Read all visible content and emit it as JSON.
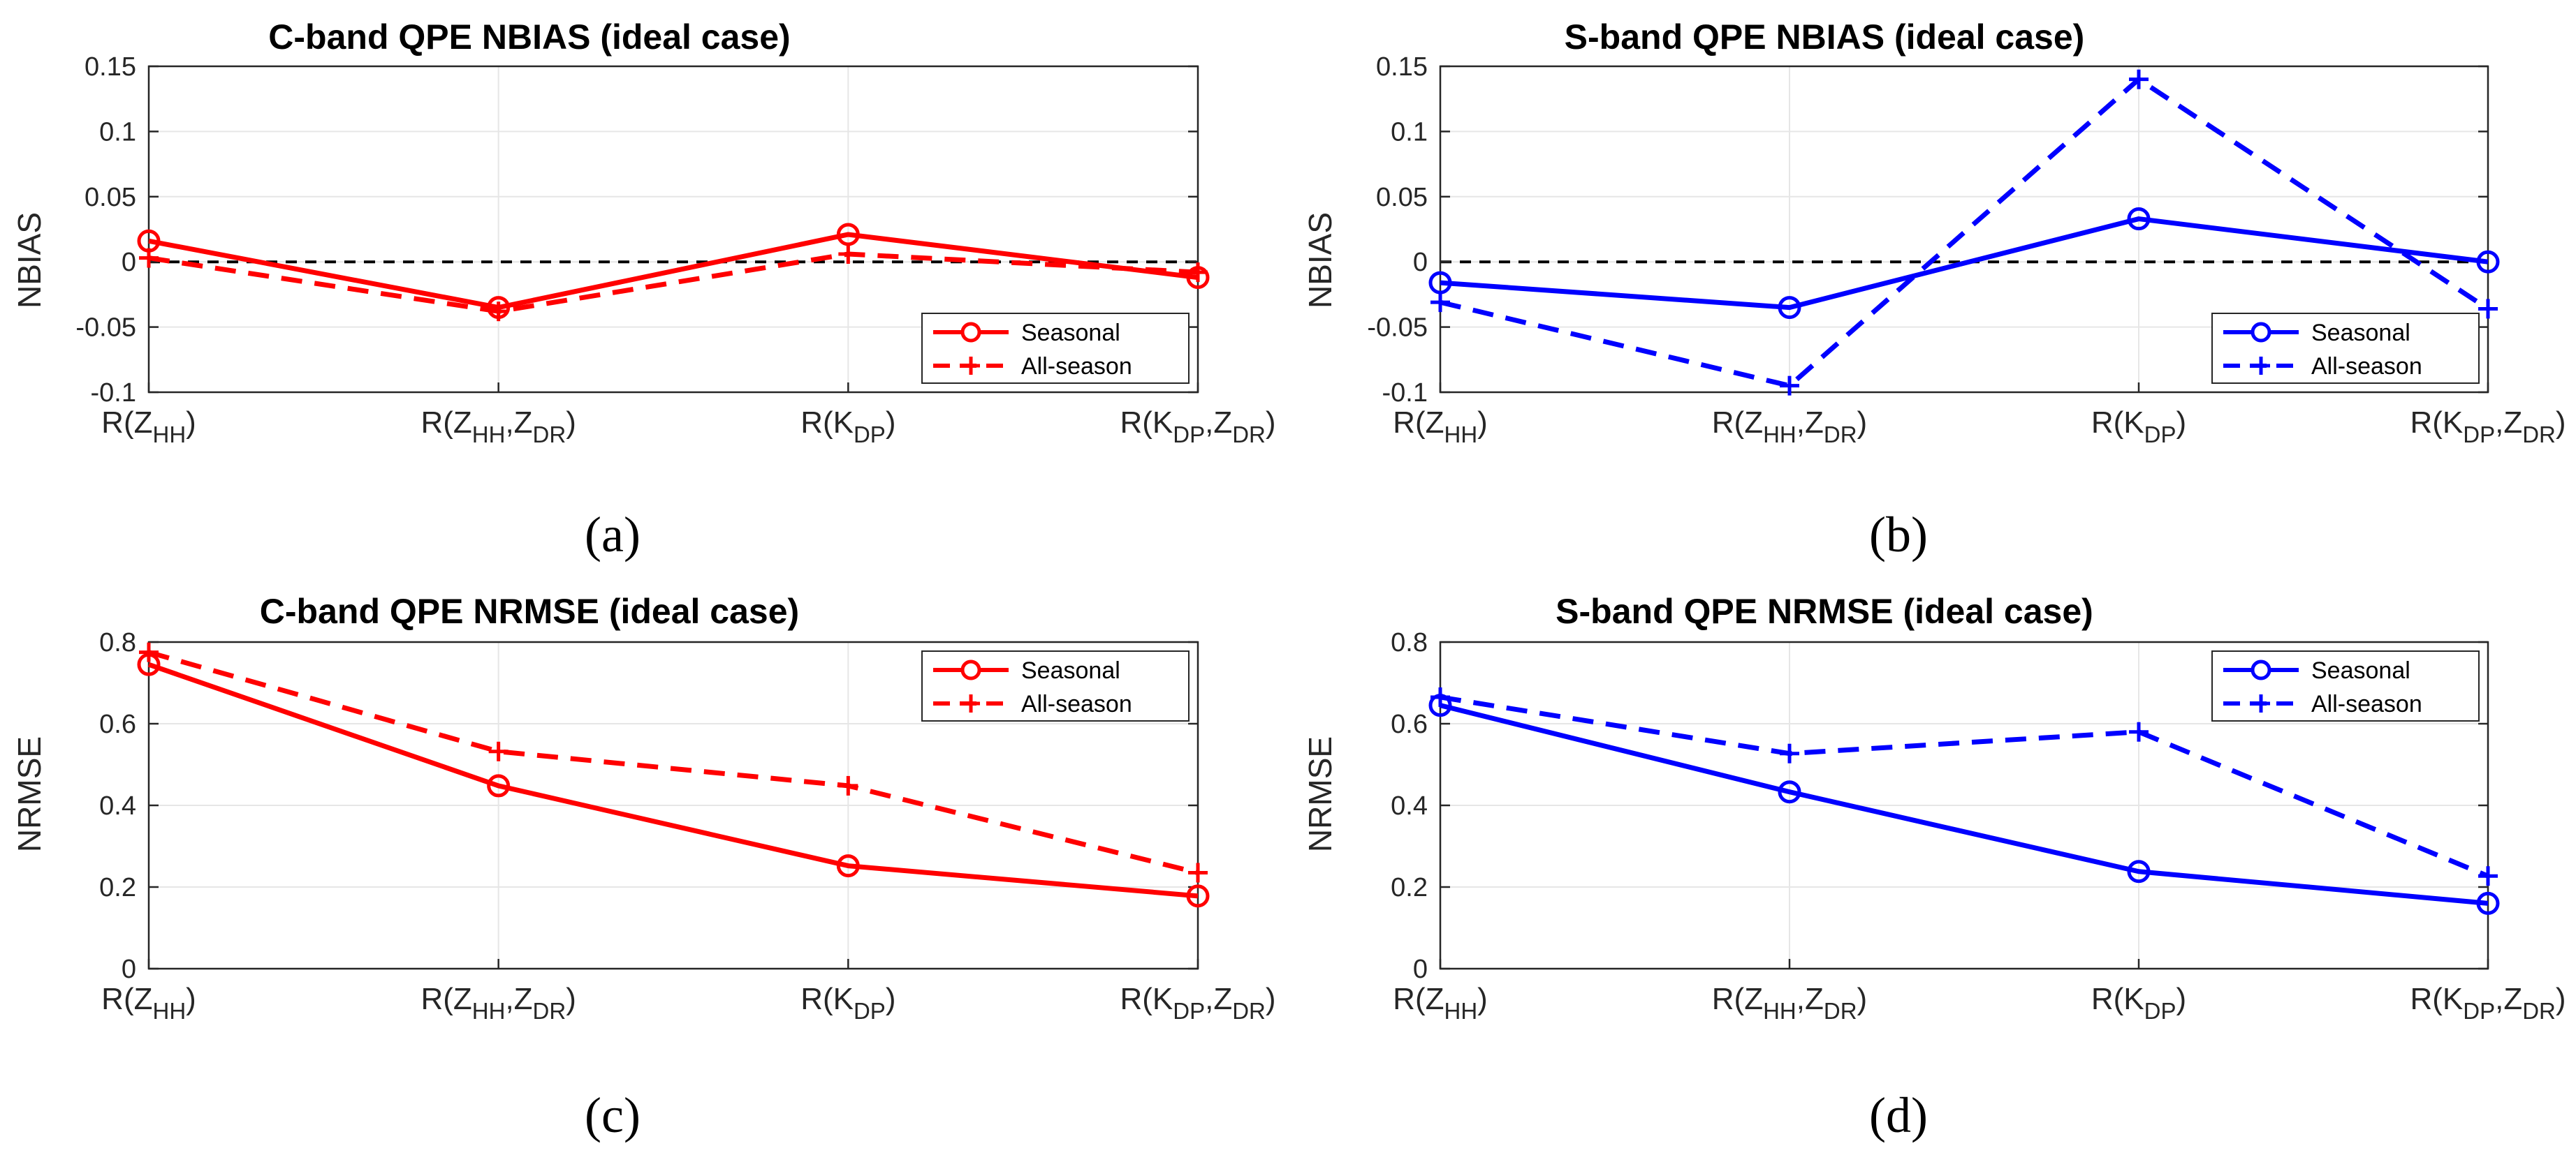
{
  "figure": {
    "colors": {
      "c_band": "#ff0000",
      "s_band": "#0000ff",
      "zero_line": "#000000",
      "grid": "#e6e6e6"
    }
  },
  "chart_data": [
    {
      "id": "a",
      "type": "line",
      "title": "C-band QPE NBIAS (ideal case)",
      "panel_label": "(a)",
      "ylabel": "NBIAS",
      "ylim": [
        -0.1,
        0.15
      ],
      "yticks": [
        "-0.1",
        "-0.05",
        "0",
        "0.05",
        "0.1",
        "0.15"
      ],
      "ytick_values": [
        -0.1,
        -0.05,
        0,
        0.05,
        0.1,
        0.15
      ],
      "categories": [
        {
          "main": "R(Z",
          "sub": "HH",
          "close": ")"
        },
        {
          "main": "R(Z",
          "sub": "HH",
          "mid": ",Z",
          "sub2": "DR",
          "close": ")"
        },
        {
          "main": "R(K",
          "sub": "DP",
          "close": ")"
        },
        {
          "main": "R(K",
          "sub": "DP",
          "mid": ",Z",
          "sub2": "DR",
          "close": ")"
        }
      ],
      "zero_line": true,
      "legend": "bottom-right",
      "color": "#ff0000",
      "series": [
        {
          "name": "Seasonal",
          "style": "solid",
          "marker": "circle",
          "values": [
            0.016,
            -0.035,
            0.021,
            -0.012
          ]
        },
        {
          "name": "All-season",
          "style": "dashed",
          "marker": "plus",
          "values": [
            0.003,
            -0.038,
            0.006,
            -0.008
          ]
        }
      ]
    },
    {
      "id": "b",
      "type": "line",
      "title": "S-band QPE NBIAS (ideal case)",
      "panel_label": "(b)",
      "ylabel": "NBIAS",
      "ylim": [
        -0.1,
        0.15
      ],
      "yticks": [
        "-0.1",
        "-0.05",
        "0",
        "0.05",
        "0.1",
        "0.15"
      ],
      "ytick_values": [
        -0.1,
        -0.05,
        0,
        0.05,
        0.1,
        0.15
      ],
      "categories": [
        {
          "main": "R(Z",
          "sub": "HH",
          "close": ")"
        },
        {
          "main": "R(Z",
          "sub": "HH",
          "mid": ",Z",
          "sub2": "DR",
          "close": ")"
        },
        {
          "main": "R(K",
          "sub": "DP",
          "close": ")"
        },
        {
          "main": "R(K",
          "sub": "DP",
          "mid": ",Z",
          "sub2": "DR",
          "close": ")"
        }
      ],
      "zero_line": true,
      "legend": "bottom-right",
      "color": "#0000ff",
      "series": [
        {
          "name": "Seasonal",
          "style": "solid",
          "marker": "circle",
          "values": [
            -0.016,
            -0.035,
            0.033,
            0.0
          ]
        },
        {
          "name": "All-season",
          "style": "dashed",
          "marker": "plus",
          "values": [
            -0.031,
            -0.095,
            0.14,
            -0.036
          ]
        }
      ]
    },
    {
      "id": "c",
      "type": "line",
      "title": "C-band QPE NRMSE (ideal case)",
      "panel_label": "(c)",
      "ylabel": "NRMSE",
      "ylim": [
        0,
        0.8
      ],
      "yticks": [
        "0",
        "0.2",
        "0.4",
        "0.6",
        "0.8"
      ],
      "ytick_values": [
        0,
        0.2,
        0.4,
        0.6,
        0.8
      ],
      "categories": [
        {
          "main": "R(Z",
          "sub": "HH",
          "close": ")"
        },
        {
          "main": "R(Z",
          "sub": "HH",
          "mid": ",Z",
          "sub2": "DR",
          "close": ")"
        },
        {
          "main": "R(K",
          "sub": "DP",
          "close": ")"
        },
        {
          "main": "R(K",
          "sub": "DP",
          "mid": ",Z",
          "sub2": "DR",
          "close": ")"
        }
      ],
      "zero_line": false,
      "legend": "top-right",
      "color": "#ff0000",
      "series": [
        {
          "name": "Seasonal",
          "style": "solid",
          "marker": "circle",
          "values": [
            0.745,
            0.448,
            0.252,
            0.178
          ]
        },
        {
          "name": "All-season",
          "style": "dashed",
          "marker": "plus",
          "values": [
            0.775,
            0.532,
            0.448,
            0.235
          ]
        }
      ]
    },
    {
      "id": "d",
      "type": "line",
      "title": "S-band QPE NRMSE (ideal case)",
      "panel_label": "(d)",
      "ylabel": "NRMSE",
      "ylim": [
        0,
        0.8
      ],
      "yticks": [
        "0",
        "0.2",
        "0.4",
        "0.6",
        "0.8"
      ],
      "ytick_values": [
        0,
        0.2,
        0.4,
        0.6,
        0.8
      ],
      "categories": [
        {
          "main": "R(Z",
          "sub": "HH",
          "close": ")"
        },
        {
          "main": "R(Z",
          "sub": "HH",
          "mid": ",Z",
          "sub2": "DR",
          "close": ")"
        },
        {
          "main": "R(K",
          "sub": "DP",
          "close": ")"
        },
        {
          "main": "R(K",
          "sub": "DP",
          "mid": ",Z",
          "sub2": "DR",
          "close": ")"
        }
      ],
      "zero_line": false,
      "legend": "top-right",
      "color": "#0000ff",
      "series": [
        {
          "name": "Seasonal",
          "style": "solid",
          "marker": "circle",
          "values": [
            0.645,
            0.433,
            0.238,
            0.16
          ]
        },
        {
          "name": "All-season",
          "style": "dashed",
          "marker": "plus",
          "values": [
            0.665,
            0.527,
            0.58,
            0.227
          ]
        }
      ]
    }
  ]
}
